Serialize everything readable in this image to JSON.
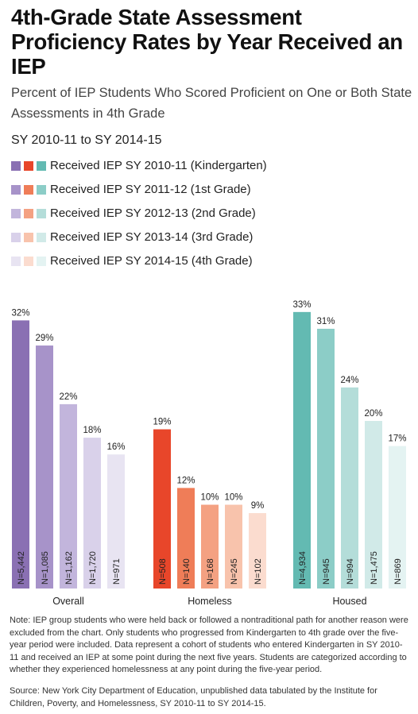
{
  "title": "4th-Grade State Assessment Proficiency Rates by Year Received an IEP",
  "subtitle": "Percent of IEP Students Who Scored Proficient on One or Both State Assessments in 4th Grade",
  "period": "SY 2010-11 to SY 2014-15",
  "legend": [
    {
      "label": "Received IEP SY 2010-11 (Kindergarten)",
      "colors": [
        "#8a70b3",
        "#e8462a",
        "#63bab2"
      ]
    },
    {
      "label": "Received IEP SY 2011-12 (1st Grade)",
      "colors": [
        "#a793c9",
        "#ef7d58",
        "#8ccdc7"
      ]
    },
    {
      "label": "Received IEP SY 2012-13 (2nd Grade)",
      "colors": [
        "#c2b5dc",
        "#f4a182",
        "#b4ddd9"
      ]
    },
    {
      "label": "Received IEP SY 2013-14 (3rd Grade)",
      "colors": [
        "#d9d1ea",
        "#f8c3ac",
        "#d1eae8"
      ]
    },
    {
      "label": "Received IEP SY 2014-15 (4th Grade)",
      "colors": [
        "#e8e4f2",
        "#fbdccf",
        "#e4f3f2"
      ]
    }
  ],
  "chart_data": {
    "type": "bar",
    "groups": [
      "Overall",
      "Homeless",
      "Housed"
    ],
    "series_labels": [
      "Received IEP SY 2010-11 (Kindergarten)",
      "Received IEP SY 2011-12 (1st Grade)",
      "Received IEP SY 2012-13 (2nd Grade)",
      "Received IEP SY 2013-14 (3rd Grade)",
      "Received IEP SY 2014-15 (4th Grade)"
    ],
    "values": {
      "Overall": [
        32,
        29,
        22,
        18,
        16
      ],
      "Homeless": [
        19,
        12,
        10,
        10,
        9
      ],
      "Housed": [
        33,
        31,
        24,
        20,
        17
      ]
    },
    "value_labels": {
      "Overall": [
        "32%",
        "29%",
        "22%",
        "18%",
        "16%"
      ],
      "Homeless": [
        "19%",
        "12%",
        "10%",
        "10%",
        "9%"
      ],
      "Housed": [
        "33%",
        "31%",
        "24%",
        "20%",
        "17%"
      ]
    },
    "n_labels": {
      "Overall": [
        "N=5,442",
        "N=1,085",
        "N=1,162",
        "N=1,720",
        "N=971"
      ],
      "Homeless": [
        "N=508",
        "N=140",
        "N=168",
        "N=245",
        "N=102"
      ],
      "Housed": [
        "N=4,934",
        "N=945",
        "N=994",
        "N=1,475",
        "N=869"
      ]
    },
    "colors": {
      "Overall": [
        "#8a70b3",
        "#a793c9",
        "#c2b5dc",
        "#d9d1ea",
        "#e8e4f2"
      ],
      "Homeless": [
        "#e8462a",
        "#ef7d58",
        "#f4a182",
        "#f8c3ac",
        "#fbdccf"
      ],
      "Housed": [
        "#63bab2",
        "#8ccdc7",
        "#b4ddd9",
        "#d1eae8",
        "#e4f3f2"
      ]
    },
    "unit": "%",
    "grid": false
  },
  "note": "Note: IEP group students who were held back or followed a nontraditional path for another reason were excluded from the chart. Only students who progressed from Kindergarten to 4th grade over the five-year period were included. Data represent a cohort of students who entered Kindergarten in SY 2010-11 and received an IEP at some point during the next five years. Students are categorized according to whether they experienced homelessness at any point during the five-year period.",
  "source": "Source: New York City Department of Education, unpublished data tabulated by the Institute for Children, Poverty, and Homelessness, SY 2010-11 to SY 2014-15."
}
